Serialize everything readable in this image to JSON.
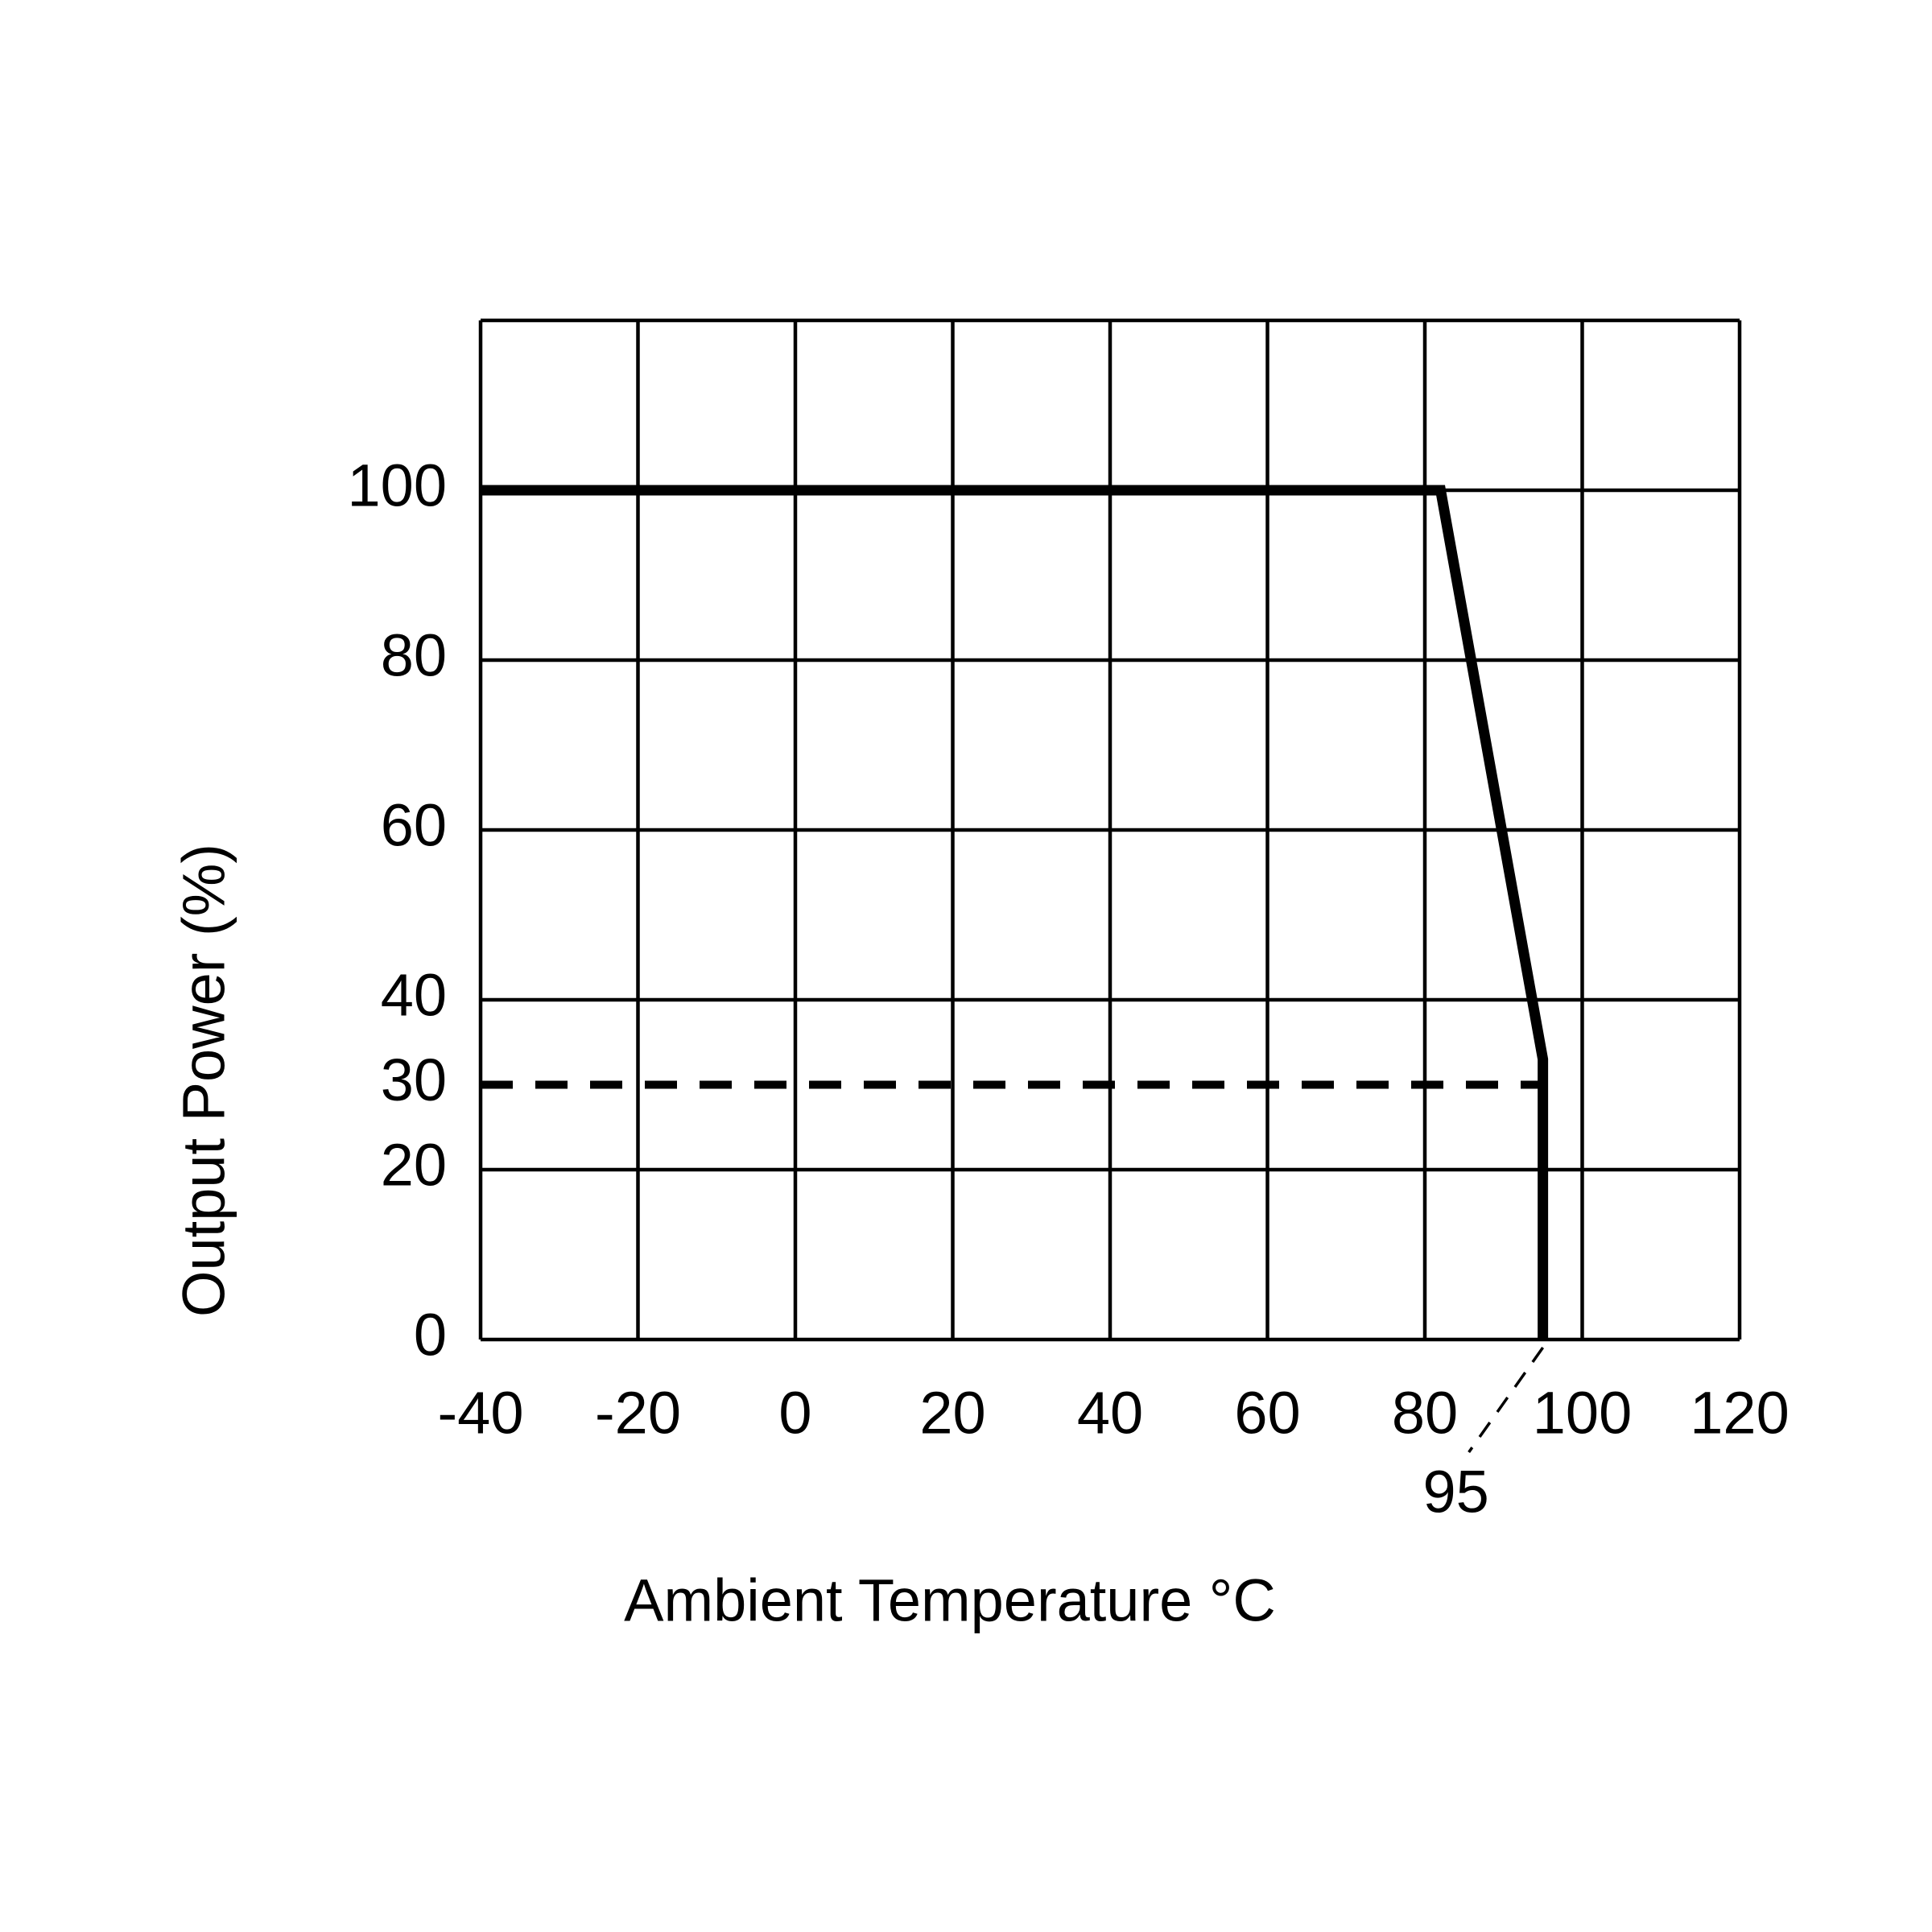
{
  "chart_data": {
    "type": "line",
    "x_label": "Ambient Temperature °C",
    "y_label": "Output Power (%)",
    "xlim": [
      -40,
      120
    ],
    "xticks": [
      -40,
      -20,
      0,
      20,
      40,
      60,
      80,
      100,
      120
    ],
    "ylim": [
      0,
      120
    ],
    "yticks": [
      0,
      20,
      30,
      40,
      60,
      80,
      100
    ],
    "ygrid": [
      0,
      20,
      40,
      60,
      80,
      100,
      120
    ],
    "grid": true,
    "series": [
      {
        "color": "#000000",
        "style": "solid",
        "x": [
          -40,
          82,
          95,
          95
        ],
        "values": [
          100,
          100,
          33,
          0
        ]
      },
      {
        "color": "#000000",
        "style": "dashed",
        "x": [
          -40,
          95
        ],
        "values": [
          30,
          30
        ]
      }
    ],
    "annotations": [
      {
        "x": 95,
        "text": "95"
      }
    ]
  }
}
